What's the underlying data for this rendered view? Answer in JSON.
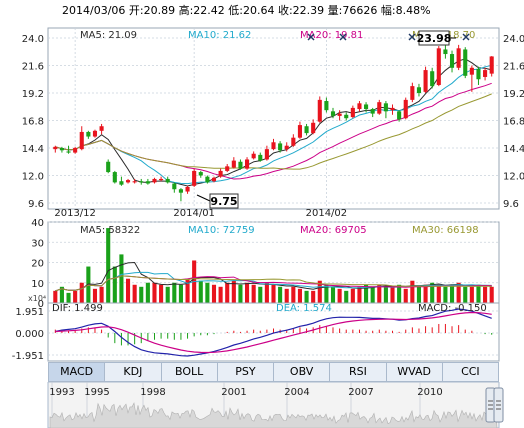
{
  "header": {
    "text": "2014/03/06 开:20.89 高:22.42 低:20.64 收:22.39 量:76626 幅:8.48%"
  },
  "price_panel": {
    "ma_labels": [
      {
        "text": "MA5: 21.09",
        "color": "#2b2b2b"
      },
      {
        "text": "MA10: 21.62",
        "color": "#22aacc"
      },
      {
        "text": "MA20: 19.81",
        "color": "#cc0088"
      },
      {
        "text": "MA30: 18.70",
        "color": "#999933"
      }
    ],
    "y_ticks": [
      "24.0",
      "21.6",
      "19.2",
      "16.8",
      "14.4",
      "12.0",
      "9.6"
    ],
    "x_ticks": [
      "2013/12",
      "2014/01",
      "2014/02"
    ],
    "high_label": "23.98",
    "low_label": "9.75"
  },
  "volume_panel": {
    "unit": "x10⁴",
    "ma_labels": [
      {
        "text": "MA5: 58322",
        "color": "#2b2b2b"
      },
      {
        "text": "MA10: 72759",
        "color": "#22aacc"
      },
      {
        "text": "MA20: 69705",
        "color": "#cc0088"
      },
      {
        "text": "MA30: 66198",
        "color": "#999933"
      }
    ],
    "y_ticks": [
      "40",
      "30",
      "20",
      "10",
      "0"
    ]
  },
  "macd_panel": {
    "dif_label": "DIF: 1.499",
    "dea_label": "DEA: 1.574",
    "macd_label": "MACD: -0.150",
    "y_ticks": [
      "1.951",
      "0.000",
      "-1.951"
    ]
  },
  "tabs": [
    {
      "label": "MACD",
      "active": true
    },
    {
      "label": "KDJ"
    },
    {
      "label": "BOLL"
    },
    {
      "label": "PSY"
    },
    {
      "label": "OBV"
    },
    {
      "label": "RSI"
    },
    {
      "label": "WVAD"
    },
    {
      "label": "CCI"
    }
  ],
  "timeline": {
    "years": [
      "1993",
      "1995",
      "1998",
      "2001",
      "2004",
      "2007",
      "2010"
    ]
  },
  "chart_data": {
    "type": "candlestick",
    "ylim": [
      9.6,
      24.0
    ],
    "candles": [
      {
        "o": 14.3,
        "c": 14.5,
        "h": 14.6,
        "l": 14.0
      },
      {
        "o": 14.4,
        "c": 14.2,
        "h": 14.5,
        "l": 14.0
      },
      {
        "o": 14.1,
        "c": 14.0,
        "h": 14.6,
        "l": 13.9
      },
      {
        "o": 14.0,
        "c": 14.4,
        "h": 14.5,
        "l": 13.9
      },
      {
        "o": 14.3,
        "c": 15.8,
        "h": 16.3,
        "l": 14.2
      },
      {
        "o": 15.8,
        "c": 15.4,
        "h": 15.9,
        "l": 15.2
      },
      {
        "o": 15.4,
        "c": 15.9,
        "h": 16.0,
        "l": 15.3
      },
      {
        "o": 15.9,
        "c": 16.3,
        "h": 16.5,
        "l": 15.6
      },
      {
        "o": 13.2,
        "c": 12.3,
        "h": 13.4,
        "l": 12.2
      },
      {
        "o": 12.3,
        "c": 11.4,
        "h": 12.4,
        "l": 11.3
      },
      {
        "o": 11.5,
        "c": 11.2,
        "h": 11.9,
        "l": 11.1
      },
      {
        "o": 11.4,
        "c": 11.6,
        "h": 11.7,
        "l": 11.3
      },
      {
        "o": 11.4,
        "c": 11.5,
        "h": 11.7,
        "l": 11.3
      },
      {
        "o": 11.5,
        "c": 11.4,
        "h": 11.7,
        "l": 11.2
      },
      {
        "o": 11.5,
        "c": 11.3,
        "h": 11.7,
        "l": 11.2
      },
      {
        "o": 11.4,
        "c": 11.7,
        "h": 11.8,
        "l": 11.3
      },
      {
        "o": 11.6,
        "c": 11.7,
        "h": 11.9,
        "l": 11.5
      },
      {
        "o": 11.7,
        "c": 11.4,
        "h": 11.9,
        "l": 11.3
      },
      {
        "o": 11.3,
        "c": 10.8,
        "h": 11.4,
        "l": 10.5
      },
      {
        "o": 10.8,
        "c": 10.5,
        "h": 10.9,
        "l": 9.75
      },
      {
        "o": 10.6,
        "c": 11.0,
        "h": 11.1,
        "l": 10.4
      },
      {
        "o": 11.1,
        "c": 12.4,
        "h": 12.6,
        "l": 11.0
      },
      {
        "o": 12.3,
        "c": 12.0,
        "h": 12.4,
        "l": 11.8
      },
      {
        "o": 11.9,
        "c": 11.4,
        "h": 12.0,
        "l": 11.3
      },
      {
        "o": 11.5,
        "c": 11.8,
        "h": 11.9,
        "l": 11.4
      },
      {
        "o": 11.9,
        "c": 12.4,
        "h": 12.6,
        "l": 11.8
      },
      {
        "o": 12.4,
        "c": 12.8,
        "h": 13.0,
        "l": 12.3
      },
      {
        "o": 12.7,
        "c": 13.3,
        "h": 13.6,
        "l": 12.6
      },
      {
        "o": 13.2,
        "c": 12.6,
        "h": 13.4,
        "l": 12.5
      },
      {
        "o": 12.6,
        "c": 13.4,
        "h": 13.6,
        "l": 12.5
      },
      {
        "o": 13.5,
        "c": 13.9,
        "h": 14.1,
        "l": 13.4
      },
      {
        "o": 13.8,
        "c": 13.3,
        "h": 14.0,
        "l": 13.2
      },
      {
        "o": 13.4,
        "c": 14.3,
        "h": 14.6,
        "l": 13.3
      },
      {
        "o": 14.3,
        "c": 14.9,
        "h": 15.2,
        "l": 14.2
      },
      {
        "o": 14.8,
        "c": 14.2,
        "h": 15.0,
        "l": 14.0
      },
      {
        "o": 14.3,
        "c": 14.6,
        "h": 14.9,
        "l": 14.1
      },
      {
        "o": 14.6,
        "c": 15.3,
        "h": 15.6,
        "l": 14.5
      },
      {
        "o": 15.3,
        "c": 16.4,
        "h": 16.7,
        "l": 15.2
      },
      {
        "o": 16.3,
        "c": 15.7,
        "h": 16.5,
        "l": 15.5
      },
      {
        "o": 15.7,
        "c": 16.6,
        "h": 16.9,
        "l": 15.6
      },
      {
        "o": 16.7,
        "c": 18.6,
        "h": 18.9,
        "l": 16.6
      },
      {
        "o": 18.5,
        "c": 17.7,
        "h": 18.8,
        "l": 17.5
      },
      {
        "o": 17.6,
        "c": 17.2,
        "h": 17.9,
        "l": 17.0
      },
      {
        "o": 17.2,
        "c": 17.4,
        "h": 17.7,
        "l": 16.8
      },
      {
        "o": 17.3,
        "c": 17.0,
        "h": 17.5,
        "l": 16.8
      },
      {
        "o": 17.1,
        "c": 17.9,
        "h": 18.1,
        "l": 17.0
      },
      {
        "o": 17.8,
        "c": 18.3,
        "h": 18.5,
        "l": 17.6
      },
      {
        "o": 18.2,
        "c": 17.8,
        "h": 18.4,
        "l": 17.5
      },
      {
        "o": 17.8,
        "c": 17.4,
        "h": 17.9,
        "l": 17.1
      },
      {
        "o": 17.4,
        "c": 18.4,
        "h": 18.6,
        "l": 17.3
      },
      {
        "o": 18.3,
        "c": 17.6,
        "h": 18.5,
        "l": 17.0
      },
      {
        "o": 17.7,
        "c": 17.9,
        "h": 18.2,
        "l": 17.3
      },
      {
        "o": 17.6,
        "c": 16.9,
        "h": 17.7,
        "l": 16.7
      },
      {
        "o": 17.0,
        "c": 18.6,
        "h": 18.8,
        "l": 16.9
      },
      {
        "o": 18.6,
        "c": 19.8,
        "h": 20.1,
        "l": 18.4
      },
      {
        "o": 19.7,
        "c": 19.2,
        "h": 20.0,
        "l": 18.9
      },
      {
        "o": 19.3,
        "c": 21.2,
        "h": 21.5,
        "l": 19.2
      },
      {
        "o": 21.1,
        "c": 19.8,
        "h": 21.4,
        "l": 19.6
      },
      {
        "o": 19.9,
        "c": 23.1,
        "h": 23.3,
        "l": 19.8
      },
      {
        "o": 23.0,
        "c": 22.6,
        "h": 23.98,
        "l": 22.2
      },
      {
        "o": 22.6,
        "c": 21.4,
        "h": 22.9,
        "l": 21.0
      },
      {
        "o": 21.4,
        "c": 23.1,
        "h": 23.4,
        "l": 21.2
      },
      {
        "o": 23.0,
        "c": 20.7,
        "h": 23.2,
        "l": 20.5
      },
      {
        "o": 20.8,
        "c": 21.4,
        "h": 21.6,
        "l": 19.3
      },
      {
        "o": 21.3,
        "c": 20.4,
        "h": 21.5,
        "l": 19.9
      },
      {
        "o": 20.6,
        "c": 21.2,
        "h": 21.4,
        "l": 20.3
      },
      {
        "o": 20.89,
        "c": 22.39,
        "h": 22.42,
        "l": 20.64
      }
    ],
    "volume": [
      6,
      8,
      5,
      6,
      10,
      18,
      7,
      8,
      37,
      18,
      24,
      12,
      9,
      8,
      10,
      10,
      9,
      8,
      10,
      9,
      12,
      21,
      11,
      10,
      9,
      8,
      10,
      11,
      9,
      10,
      9,
      8,
      10,
      9,
      8,
      7,
      8,
      7,
      6,
      6,
      11,
      9,
      8,
      7,
      6,
      7,
      8,
      9,
      8,
      9,
      8,
      8,
      9,
      7,
      11,
      8,
      9,
      10,
      9,
      8,
      9,
      10,
      8,
      8,
      9,
      8,
      8
    ],
    "macd_hist": [
      0.3,
      0.3,
      0.2,
      0.2,
      0.4,
      0.5,
      0.4,
      0.3,
      -0.4,
      -0.9,
      -1.1,
      -1.1,
      -1.0,
      -0.9,
      -0.7,
      -0.6,
      -0.5,
      -0.5,
      -0.6,
      -0.6,
      -0.5,
      -0.3,
      -0.2,
      -0.2,
      -0.1,
      0.0,
      0.1,
      0.2,
      0.1,
      0.2,
      0.3,
      0.2,
      0.3,
      0.4,
      0.3,
      0.3,
      0.4,
      0.5,
      0.4,
      0.5,
      0.7,
      0.6,
      0.5,
      0.4,
      0.3,
      0.3,
      0.3,
      0.2,
      0.2,
      0.3,
      0.2,
      0.2,
      0.1,
      0.3,
      0.5,
      0.4,
      0.6,
      0.5,
      0.8,
      0.8,
      0.6,
      0.7,
      0.3,
      0.2,
      0.0,
      -0.1,
      -0.15
    ]
  }
}
